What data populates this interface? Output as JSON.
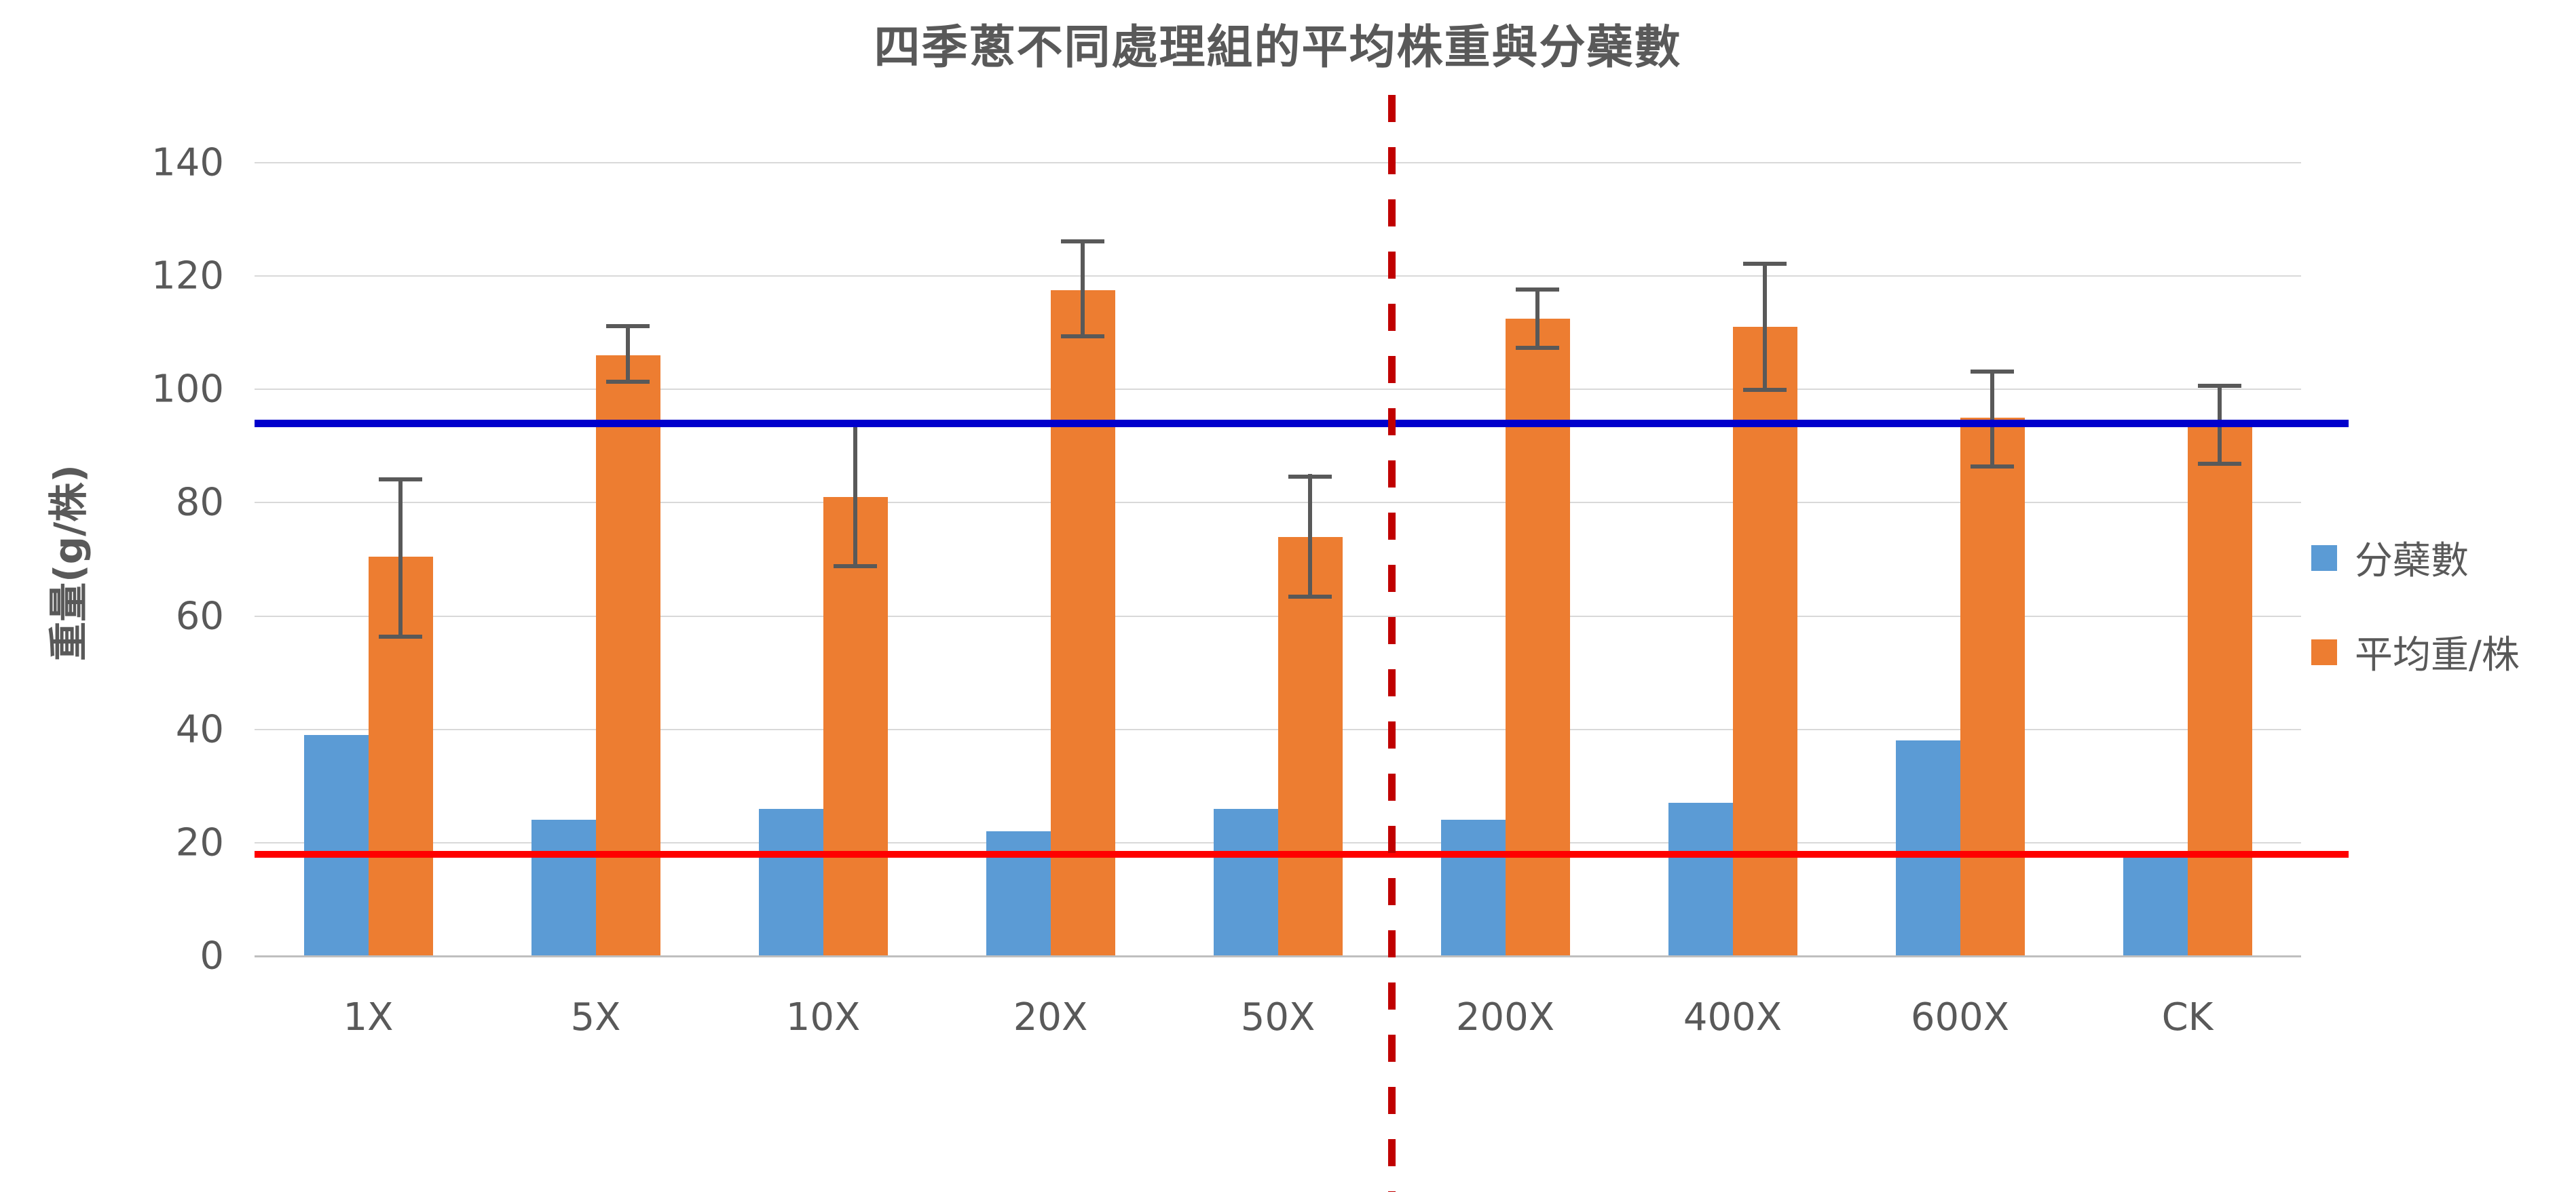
{
  "chart_data": {
    "type": "bar",
    "title": "四季蔥不同處理組的平均株重與分蘗數",
    "ylabel": "重量(g/株)",
    "xlabel": "",
    "categories": [
      "1X",
      "5X",
      "10X",
      "20X",
      "50X",
      "200X",
      "400X",
      "600X",
      "CK"
    ],
    "series": [
      {
        "name": "分蘗數",
        "color": "#5B9BD5",
        "values": [
          39,
          24,
          26,
          22,
          26,
          24,
          27,
          38,
          17.5
        ]
      },
      {
        "name": "平均重/株",
        "color": "#ED7D31",
        "values": [
          70.5,
          106,
          81,
          117.5,
          74,
          112.5,
          111,
          95,
          93.5
        ],
        "error_bars": {
          "color": "#595959",
          "plus": [
            14,
            5.5,
            13,
            9,
            11,
            5.5,
            11.5,
            8.5,
            7.5
          ],
          "minus": [
            14.5,
            5,
            12.5,
            8.5,
            11,
            5.5,
            11.5,
            9,
            7
          ]
        }
      }
    ],
    "ylim": [
      0,
      140
    ],
    "yticks": [
      0,
      20,
      40,
      60,
      80,
      100,
      120,
      140
    ],
    "grid": true,
    "gridline_color": "#D9D9D9",
    "axis_line_color": "#BFBFBF",
    "text_color": "#595959",
    "legend_position": "right",
    "reference_lines": [
      {
        "name": "upper-weight-reference-line",
        "orientation": "horizontal",
        "value": 94,
        "color": "#0000CC",
        "style": "solid",
        "thickness": 11
      },
      {
        "name": "lower-tiller-reference-line",
        "orientation": "horizontal",
        "value": 18,
        "color": "#FF0000",
        "style": "solid",
        "thickness": 10
      },
      {
        "name": "dilution-group-divider-line",
        "orientation": "vertical",
        "between": [
          "50X",
          "200X"
        ],
        "color": "#C00000",
        "style": "dashed",
        "thickness": 11
      }
    ]
  }
}
